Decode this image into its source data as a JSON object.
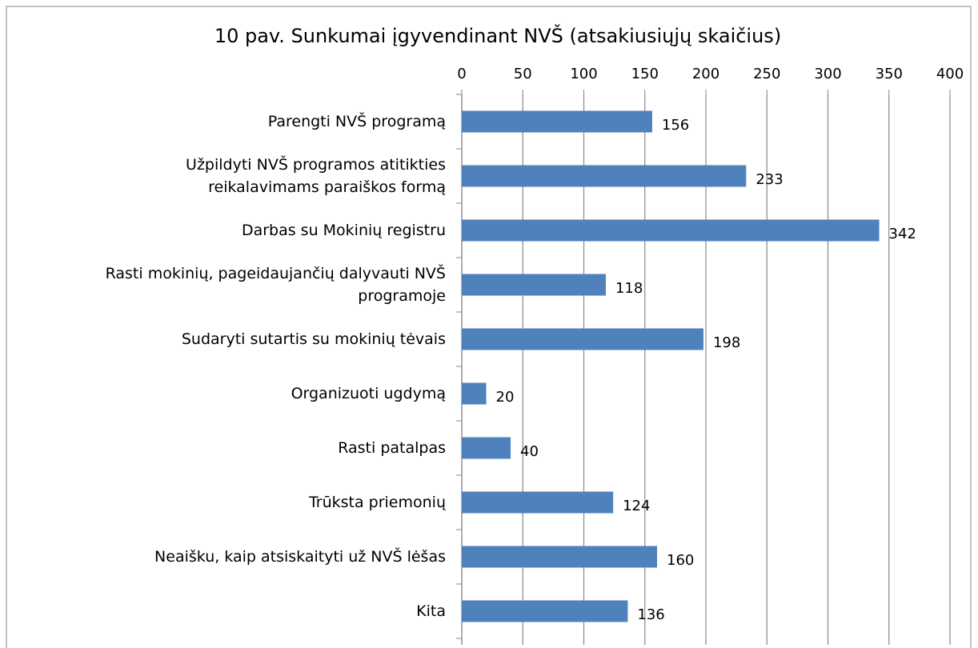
{
  "chart_data": {
    "type": "bar",
    "orientation": "horizontal",
    "title": "10 pav. Sunkumai įgyvendinant  NVŠ (atsakiusiųjų  skaičius)",
    "categories": [
      "Parengti NVŠ programą",
      "Užpildyti NVŠ programos atitikties\nreikalavimams paraiškos formą",
      "Darbas su Mokinių registru",
      "Rasti mokinių, pageidaujančių dalyvauti NVŠ\nprogramoje",
      "Sudaryti sutartis su mokinių tėvais",
      "Organizuoti ugdymą",
      "Rasti patalpas",
      "Trūksta priemonių",
      "Neaišku, kaip atsiskaityti už NVŠ lėšas",
      "Kita"
    ],
    "values": [
      156,
      233,
      342,
      118,
      198,
      20,
      40,
      124,
      160,
      136
    ],
    "color": "#4f81bd",
    "xlim": [
      0,
      400
    ],
    "xticks": [
      0,
      50,
      100,
      150,
      200,
      250,
      300,
      350,
      400
    ],
    "grid": true
  }
}
